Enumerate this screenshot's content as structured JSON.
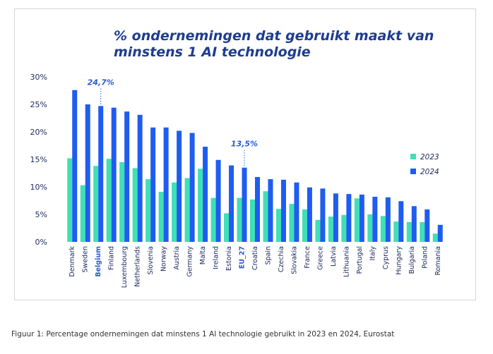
{
  "chart_data": {
    "type": "bar",
    "title_lines": [
      "% ondernemingen dat gebruikt maakt van",
      "minstens 1 AI technologie"
    ],
    "categories": [
      "Denmark",
      "Sweden",
      "Belgium",
      "Finland",
      "Luxembourg",
      "Netherlands",
      "Slovenia",
      "Norway",
      "Austria",
      "Germany",
      "Malta",
      "Ireland",
      "Estonia",
      "EU_27",
      "Croatia",
      "Spain",
      "Czechia",
      "Slovakia",
      "France",
      "Greece",
      "Latvia",
      "Lithuania",
      "Portugal",
      "Italy",
      "Cyprus",
      "Hungary",
      "Bulgaria",
      "Poland",
      "Romania"
    ],
    "highlighted_categories": [
      "Belgium",
      "EU_27"
    ],
    "series": [
      {
        "name": "2023",
        "color": "#3ee0b7",
        "values": [
          15.2,
          10.3,
          13.8,
          15.1,
          14.5,
          13.4,
          11.4,
          9.1,
          10.8,
          11.6,
          13.3,
          8.0,
          5.2,
          8.0,
          7.7,
          9.2,
          6.0,
          6.9,
          5.9,
          4.0,
          4.6,
          4.9,
          7.9,
          5.0,
          4.7,
          3.7,
          3.6,
          3.6,
          1.5
        ]
      },
      {
        "name": "2024",
        "color": "#1f5cf0",
        "values": [
          27.6,
          25.0,
          24.7,
          24.4,
          23.7,
          23.1,
          20.8,
          20.8,
          20.2,
          19.8,
          17.3,
          14.9,
          13.9,
          13.5,
          11.8,
          11.4,
          11.3,
          10.8,
          9.9,
          9.7,
          8.8,
          8.7,
          8.6,
          8.2,
          8.1,
          7.4,
          6.5,
          5.9,
          3.1
        ]
      }
    ],
    "ylim": [
      0,
      30
    ],
    "yticks": [
      0,
      5,
      10,
      15,
      20,
      25,
      30
    ],
    "ytick_labels": [
      "0%",
      "5%",
      "10%",
      "15%",
      "20%",
      "25%",
      "30%"
    ],
    "legend": {
      "placement": "right",
      "items": [
        "2023",
        "2024"
      ]
    },
    "annotations": [
      {
        "category": "Belgium",
        "text": "24,7%",
        "value": 24.7
      },
      {
        "category": "EU_27",
        "text": "13,5%",
        "value": 13.5
      }
    ],
    "grid": false
  },
  "caption": "Figuur 1: Percentage ondernemingen dat minstens 1 AI technologie gebruikt in 2023 en 2024, Eurostat"
}
